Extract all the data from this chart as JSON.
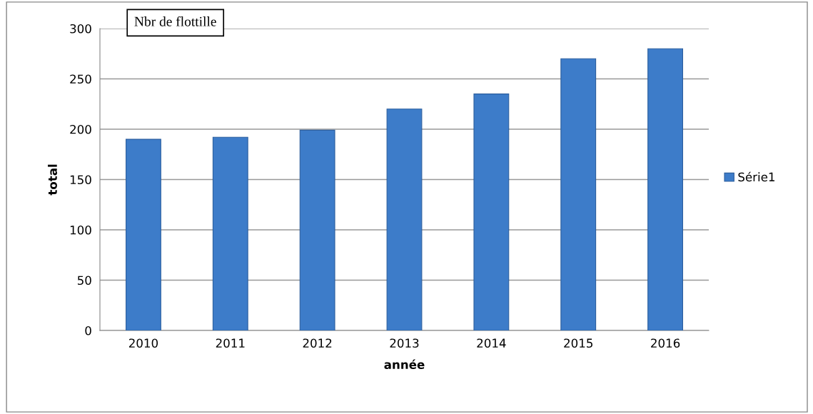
{
  "chart_data": {
    "type": "bar",
    "categories": [
      "2010",
      "2011",
      "2012",
      "2013",
      "2014",
      "2015",
      "2016"
    ],
    "series": [
      {
        "name": "Série1",
        "color": "#3d7cc9",
        "values": [
          190,
          192,
          199,
          220,
          235,
          270,
          280
        ]
      }
    ],
    "xlabel": "année",
    "ylabel": "total",
    "annotations": [
      "Nbr de flottille"
    ],
    "ylim": [
      0,
      300
    ],
    "yticks": [
      0,
      50,
      100,
      150,
      200,
      250,
      300
    ],
    "grid": "y",
    "legend": "right"
  }
}
